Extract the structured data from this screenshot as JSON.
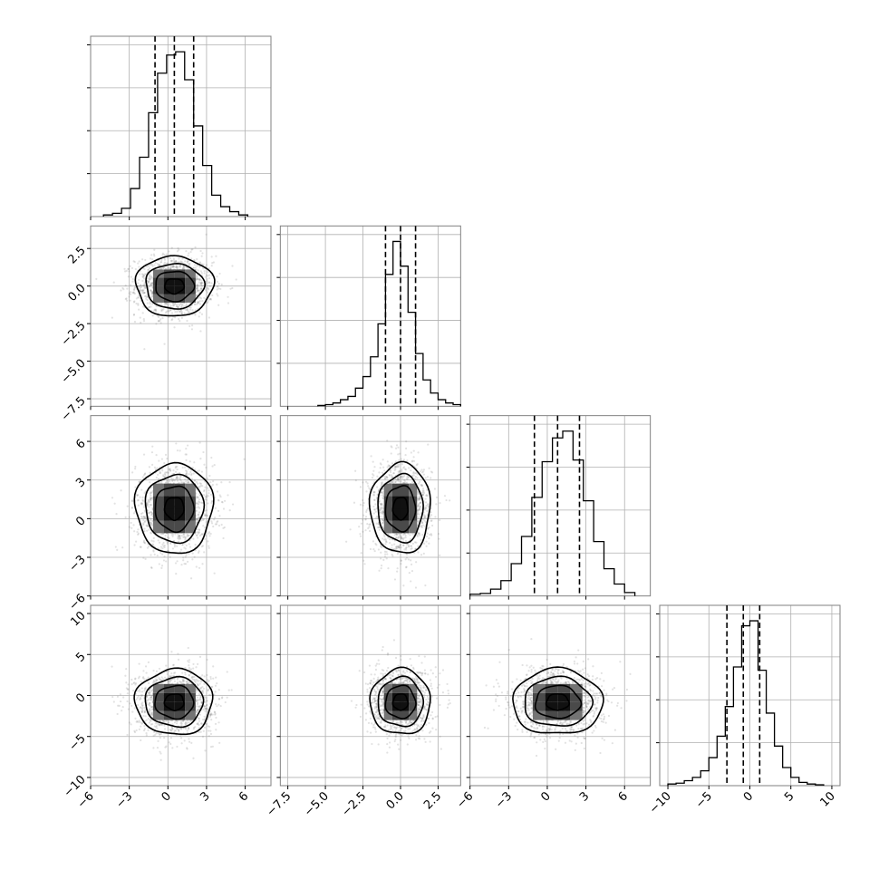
{
  "chart_data": {
    "type": "corner",
    "grid": true,
    "parameters": [
      {
        "range": [
          -6,
          8
        ],
        "ticks": [
          -6,
          -3,
          0,
          3,
          6
        ],
        "tick_labels": [
          "−6",
          "−3",
          "0",
          "3",
          "6"
        ],
        "quantiles": [
          -1.0,
          0.5,
          2.0
        ],
        "hist_bins": [
          -5.0,
          -4.3,
          -3.6,
          -2.9,
          -2.2,
          -1.5,
          -0.8,
          -0.1,
          0.6,
          1.3,
          2.0,
          2.7,
          3.4,
          4.1,
          4.8,
          5.5,
          6.2
        ],
        "hist_values": [
          0.01,
          0.02,
          0.05,
          0.17,
          0.36,
          0.63,
          0.87,
          0.98,
          1.0,
          0.83,
          0.55,
          0.31,
          0.13,
          0.06,
          0.03,
          0.01
        ]
      },
      {
        "range": [
          -8,
          4
        ],
        "ticks": [
          -7.5,
          -5.0,
          -2.5,
          0.0,
          2.5
        ],
        "tick_labels": [
          "−7.5",
          "−5.0",
          "−2.5",
          "0.0",
          "2.5"
        ],
        "quantiles": [
          -1.0,
          0.0,
          1.0
        ],
        "hist_bins": [
          -5.5,
          -5.0,
          -4.5,
          -4.0,
          -3.5,
          -3.0,
          -2.5,
          -2.0,
          -1.5,
          -1.0,
          -0.5,
          0.0,
          0.5,
          1.0,
          1.5,
          2.0,
          2.5,
          3.0,
          3.5,
          4.0
        ],
        "hist_values": [
          0.005,
          0.01,
          0.02,
          0.04,
          0.06,
          0.11,
          0.18,
          0.3,
          0.5,
          0.8,
          1.0,
          0.85,
          0.57,
          0.32,
          0.16,
          0.08,
          0.04,
          0.02,
          0.01
        ]
      },
      {
        "range": [
          -6,
          8
        ],
        "ticks": [
          -6,
          -3,
          0,
          3,
          6
        ],
        "tick_labels": [
          "−6",
          "−3",
          "0",
          "3",
          "6"
        ],
        "quantiles": [
          -1.0,
          0.8,
          2.5
        ],
        "hist_bins": [
          -6.0,
          -5.2,
          -4.4,
          -3.6,
          -2.8,
          -2.0,
          -1.2,
          -0.4,
          0.4,
          1.2,
          2.0,
          2.8,
          3.6,
          4.4,
          5.2,
          6.0,
          6.8
        ],
        "hist_values": [
          0.01,
          0.015,
          0.04,
          0.09,
          0.19,
          0.35,
          0.58,
          0.79,
          0.93,
          0.97,
          0.8,
          0.56,
          0.32,
          0.16,
          0.07,
          0.02
        ]
      },
      {
        "range": [
          -11,
          11
        ],
        "ticks": [
          -10,
          -5,
          0,
          5,
          10
        ],
        "tick_labels": [
          "−10",
          "−5",
          "0",
          "5",
          "10"
        ],
        "quantiles": [
          -2.8,
          -0.8,
          1.2
        ],
        "hist_bins": [
          -10.0,
          -9.0,
          -8.0,
          -7.0,
          -6.0,
          -5.0,
          -4.0,
          -3.0,
          -2.0,
          -1.0,
          0.0,
          1.0,
          2.0,
          3.0,
          4.0,
          5.0,
          6.0,
          7.0,
          8.0,
          9.0
        ],
        "hist_values": [
          0.01,
          0.015,
          0.03,
          0.05,
          0.09,
          0.17,
          0.3,
          0.48,
          0.72,
          0.97,
          1.0,
          0.7,
          0.44,
          0.24,
          0.11,
          0.05,
          0.02,
          0.01,
          0.005
        ]
      }
    ],
    "joint_centers": {
      "1-0": [
        0.5,
        0.0
      ],
      "2-0": [
        0.5,
        0.8
      ],
      "2-1": [
        0.0,
        0.8
      ],
      "3-0": [
        0.5,
        -0.8
      ],
      "3-1": [
        0.0,
        -0.8
      ],
      "3-2": [
        0.8,
        -0.8
      ]
    },
    "contour_levels_sigma": [
      0.5,
      1.0,
      1.5,
      2.0
    ]
  }
}
